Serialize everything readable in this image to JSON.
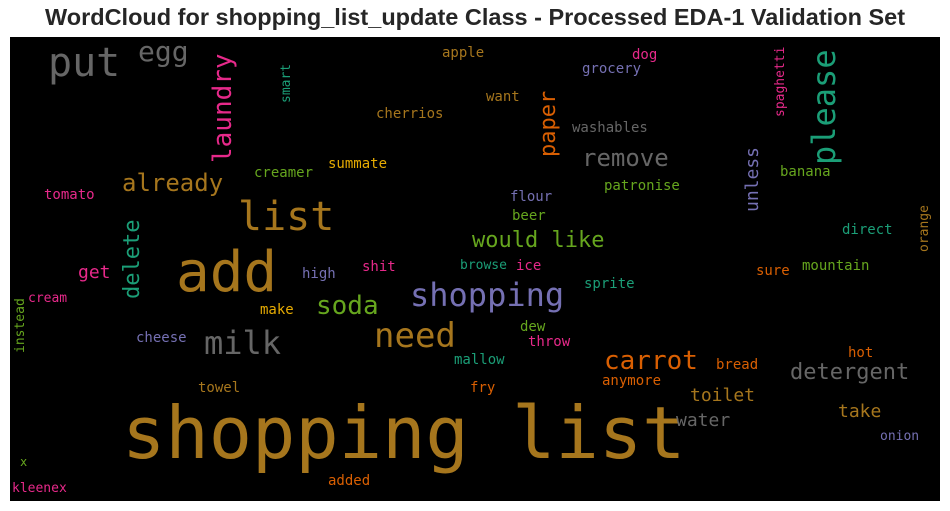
{
  "chart_data": {
    "type": "wordcloud",
    "title": "WordCloud for shopping_list_update Class - Processed EDA-1 Validation Set",
    "background": "#000000",
    "colormap": "Dark2",
    "words": [
      {
        "text": "shopping list",
        "color": "#a6761d"
      },
      {
        "text": "add",
        "color": "#a6761d"
      },
      {
        "text": "list",
        "color": "#a6761d"
      },
      {
        "text": "shopping",
        "color": "#7570b3"
      },
      {
        "text": "put",
        "color": "#666666"
      },
      {
        "text": "need",
        "color": "#a6761d"
      },
      {
        "text": "milk",
        "color": "#666666"
      },
      {
        "text": "please",
        "color": "#1b9e77"
      },
      {
        "text": "carrot",
        "color": "#d95f02"
      },
      {
        "text": "laundry",
        "color": "#e7298a"
      },
      {
        "text": "soda",
        "color": "#66a61e"
      },
      {
        "text": "already",
        "color": "#a6761d"
      },
      {
        "text": "remove",
        "color": "#666666"
      },
      {
        "text": "egg",
        "color": "#666666"
      },
      {
        "text": "detergent",
        "color": "#666666"
      },
      {
        "text": "would like",
        "color": "#66a61e"
      },
      {
        "text": "delete",
        "color": "#1b9e77"
      },
      {
        "text": "paper",
        "color": "#d95f02"
      },
      {
        "text": "unless",
        "color": "#7570b3"
      },
      {
        "text": "toilet",
        "color": "#a6761d"
      },
      {
        "text": "water",
        "color": "#666666"
      },
      {
        "text": "take",
        "color": "#a6761d"
      },
      {
        "text": "get",
        "color": "#e7298a"
      },
      {
        "text": "apple",
        "color": "#a6761d"
      },
      {
        "text": "dog",
        "color": "#e7298a"
      },
      {
        "text": "grocery",
        "color": "#7570b3"
      },
      {
        "text": "smart",
        "color": "#1b9e77"
      },
      {
        "text": "spaghetti",
        "color": "#e7298a"
      },
      {
        "text": "want",
        "color": "#a6761d"
      },
      {
        "text": "cherrios",
        "color": "#a6761d"
      },
      {
        "text": "washables",
        "color": "#666666"
      },
      {
        "text": "summate",
        "color": "#e6ab02"
      },
      {
        "text": "creamer",
        "color": "#66a61e"
      },
      {
        "text": "tomato",
        "color": "#e7298a"
      },
      {
        "text": "patronise",
        "color": "#66a61e"
      },
      {
        "text": "banana",
        "color": "#66a61e"
      },
      {
        "text": "flour",
        "color": "#7570b3"
      },
      {
        "text": "beer",
        "color": "#66a61e"
      },
      {
        "text": "direct",
        "color": "#1b9e77"
      },
      {
        "text": "orange",
        "color": "#a6761d"
      },
      {
        "text": "high",
        "color": "#7570b3"
      },
      {
        "text": "shit",
        "color": "#e7298a"
      },
      {
        "text": "browse",
        "color": "#1b9e77"
      },
      {
        "text": "ice",
        "color": "#e7298a"
      },
      {
        "text": "sure",
        "color": "#d95f02"
      },
      {
        "text": "mountain",
        "color": "#66a61e"
      },
      {
        "text": "instead",
        "color": "#66a61e"
      },
      {
        "text": "cream",
        "color": "#e7298a"
      },
      {
        "text": "make",
        "color": "#e6ab02"
      },
      {
        "text": "sprite",
        "color": "#1b9e77"
      },
      {
        "text": "cheese",
        "color": "#7570b3"
      },
      {
        "text": "dew",
        "color": "#66a61e"
      },
      {
        "text": "throw",
        "color": "#e7298a"
      },
      {
        "text": "mallow",
        "color": "#1b9e77"
      },
      {
        "text": "bread",
        "color": "#d95f02"
      },
      {
        "text": "hot",
        "color": "#d95f02"
      },
      {
        "text": "anymore",
        "color": "#d95f02"
      },
      {
        "text": "towel",
        "color": "#a6761d"
      },
      {
        "text": "fry",
        "color": "#d95f02"
      },
      {
        "text": "onion",
        "color": "#7570b3"
      },
      {
        "text": "x",
        "color": "#66a61e"
      },
      {
        "text": "kleenex",
        "color": "#e7298a"
      },
      {
        "text": "added",
        "color": "#d95f02"
      }
    ]
  }
}
